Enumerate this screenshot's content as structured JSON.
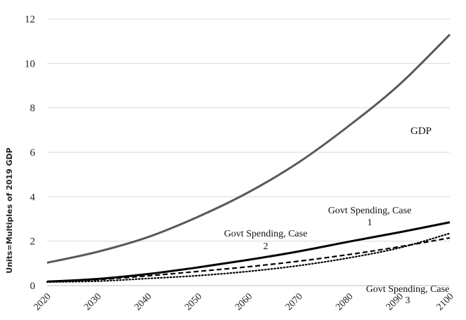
{
  "chart_data": {
    "type": "line",
    "title": "",
    "xlabel": "",
    "ylabel": "Units=Multiples of 2019 GDP",
    "xlim": [
      2020,
      2100
    ],
    "ylim": [
      0,
      12
    ],
    "x_ticks": [
      "2020",
      "2030",
      "2040",
      "2050",
      "2060",
      "2070",
      "2080",
      "2090",
      "2100"
    ],
    "y_ticks": [
      "0",
      "2",
      "4",
      "6",
      "8",
      "10",
      "12"
    ],
    "grid": "horizontal",
    "legend": "none",
    "x": [
      2020,
      2030,
      2040,
      2050,
      2060,
      2070,
      2080,
      2090,
      2100
    ],
    "series": [
      {
        "label_id": "gdp",
        "style": "solid",
        "color": "#595959",
        "values": [
          1.03,
          1.52,
          2.18,
          3.1,
          4.2,
          5.55,
          7.2,
          9.05,
          11.3
        ]
      },
      {
        "label_id": "case1",
        "style": "solid",
        "color": "#000000",
        "values": [
          0.18,
          0.3,
          0.52,
          0.82,
          1.16,
          1.54,
          1.98,
          2.4,
          2.85
        ]
      },
      {
        "label_id": "case2",
        "style": "dashed",
        "color": "#000000",
        "values": [
          0.17,
          0.27,
          0.44,
          0.64,
          0.85,
          1.1,
          1.4,
          1.75,
          2.15
        ]
      },
      {
        "label_id": "case3",
        "style": "dotted",
        "color": "#000000",
        "values": [
          0.16,
          0.2,
          0.32,
          0.45,
          0.64,
          0.9,
          1.25,
          1.7,
          2.35
        ]
      }
    ],
    "annotations": {
      "gdp": "GDP",
      "case1_line1": "Govt Spending, Case",
      "case1_line2": "1",
      "case2_line1": "Govt Spending, Case",
      "case2_line2": "2",
      "case3_line1": "Govt Spending, Case",
      "case3_line2": "3"
    }
  }
}
